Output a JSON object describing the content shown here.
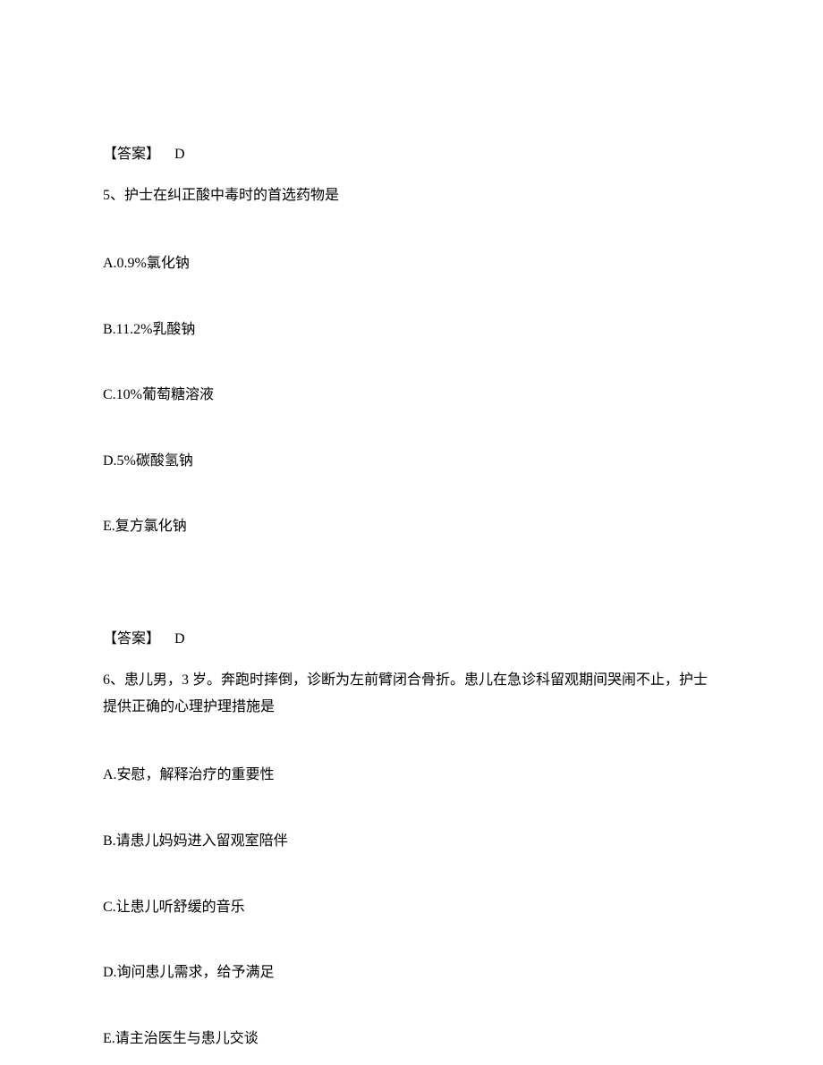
{
  "q4_answer": {
    "label": "【答案】",
    "value": "D"
  },
  "q5": {
    "stem": "5、护士在纠正酸中毒时的首选药物是",
    "options": {
      "a": "A.0.9%氯化钠",
      "b": "B.11.2%乳酸钠",
      "c": "C.10%葡萄糖溶液",
      "d": "D.5%碳酸氢钠",
      "e": "E.复方氯化钠"
    },
    "answer": {
      "label": "【答案】",
      "value": "D"
    }
  },
  "q6": {
    "stem": "6、患儿男，3 岁。奔跑时摔倒，诊断为左前臂闭合骨折。患儿在急诊科留观期间哭闹不止，护士提供正确的心理护理措施是",
    "options": {
      "a": "A.安慰，解释治疗的重要性",
      "b": "B.请患儿妈妈进入留观室陪伴",
      "c": "C.让患儿听舒缓的音乐",
      "d": "D.询问患儿需求，给予满足",
      "e": "E.请主治医生与患儿交谈"
    }
  }
}
